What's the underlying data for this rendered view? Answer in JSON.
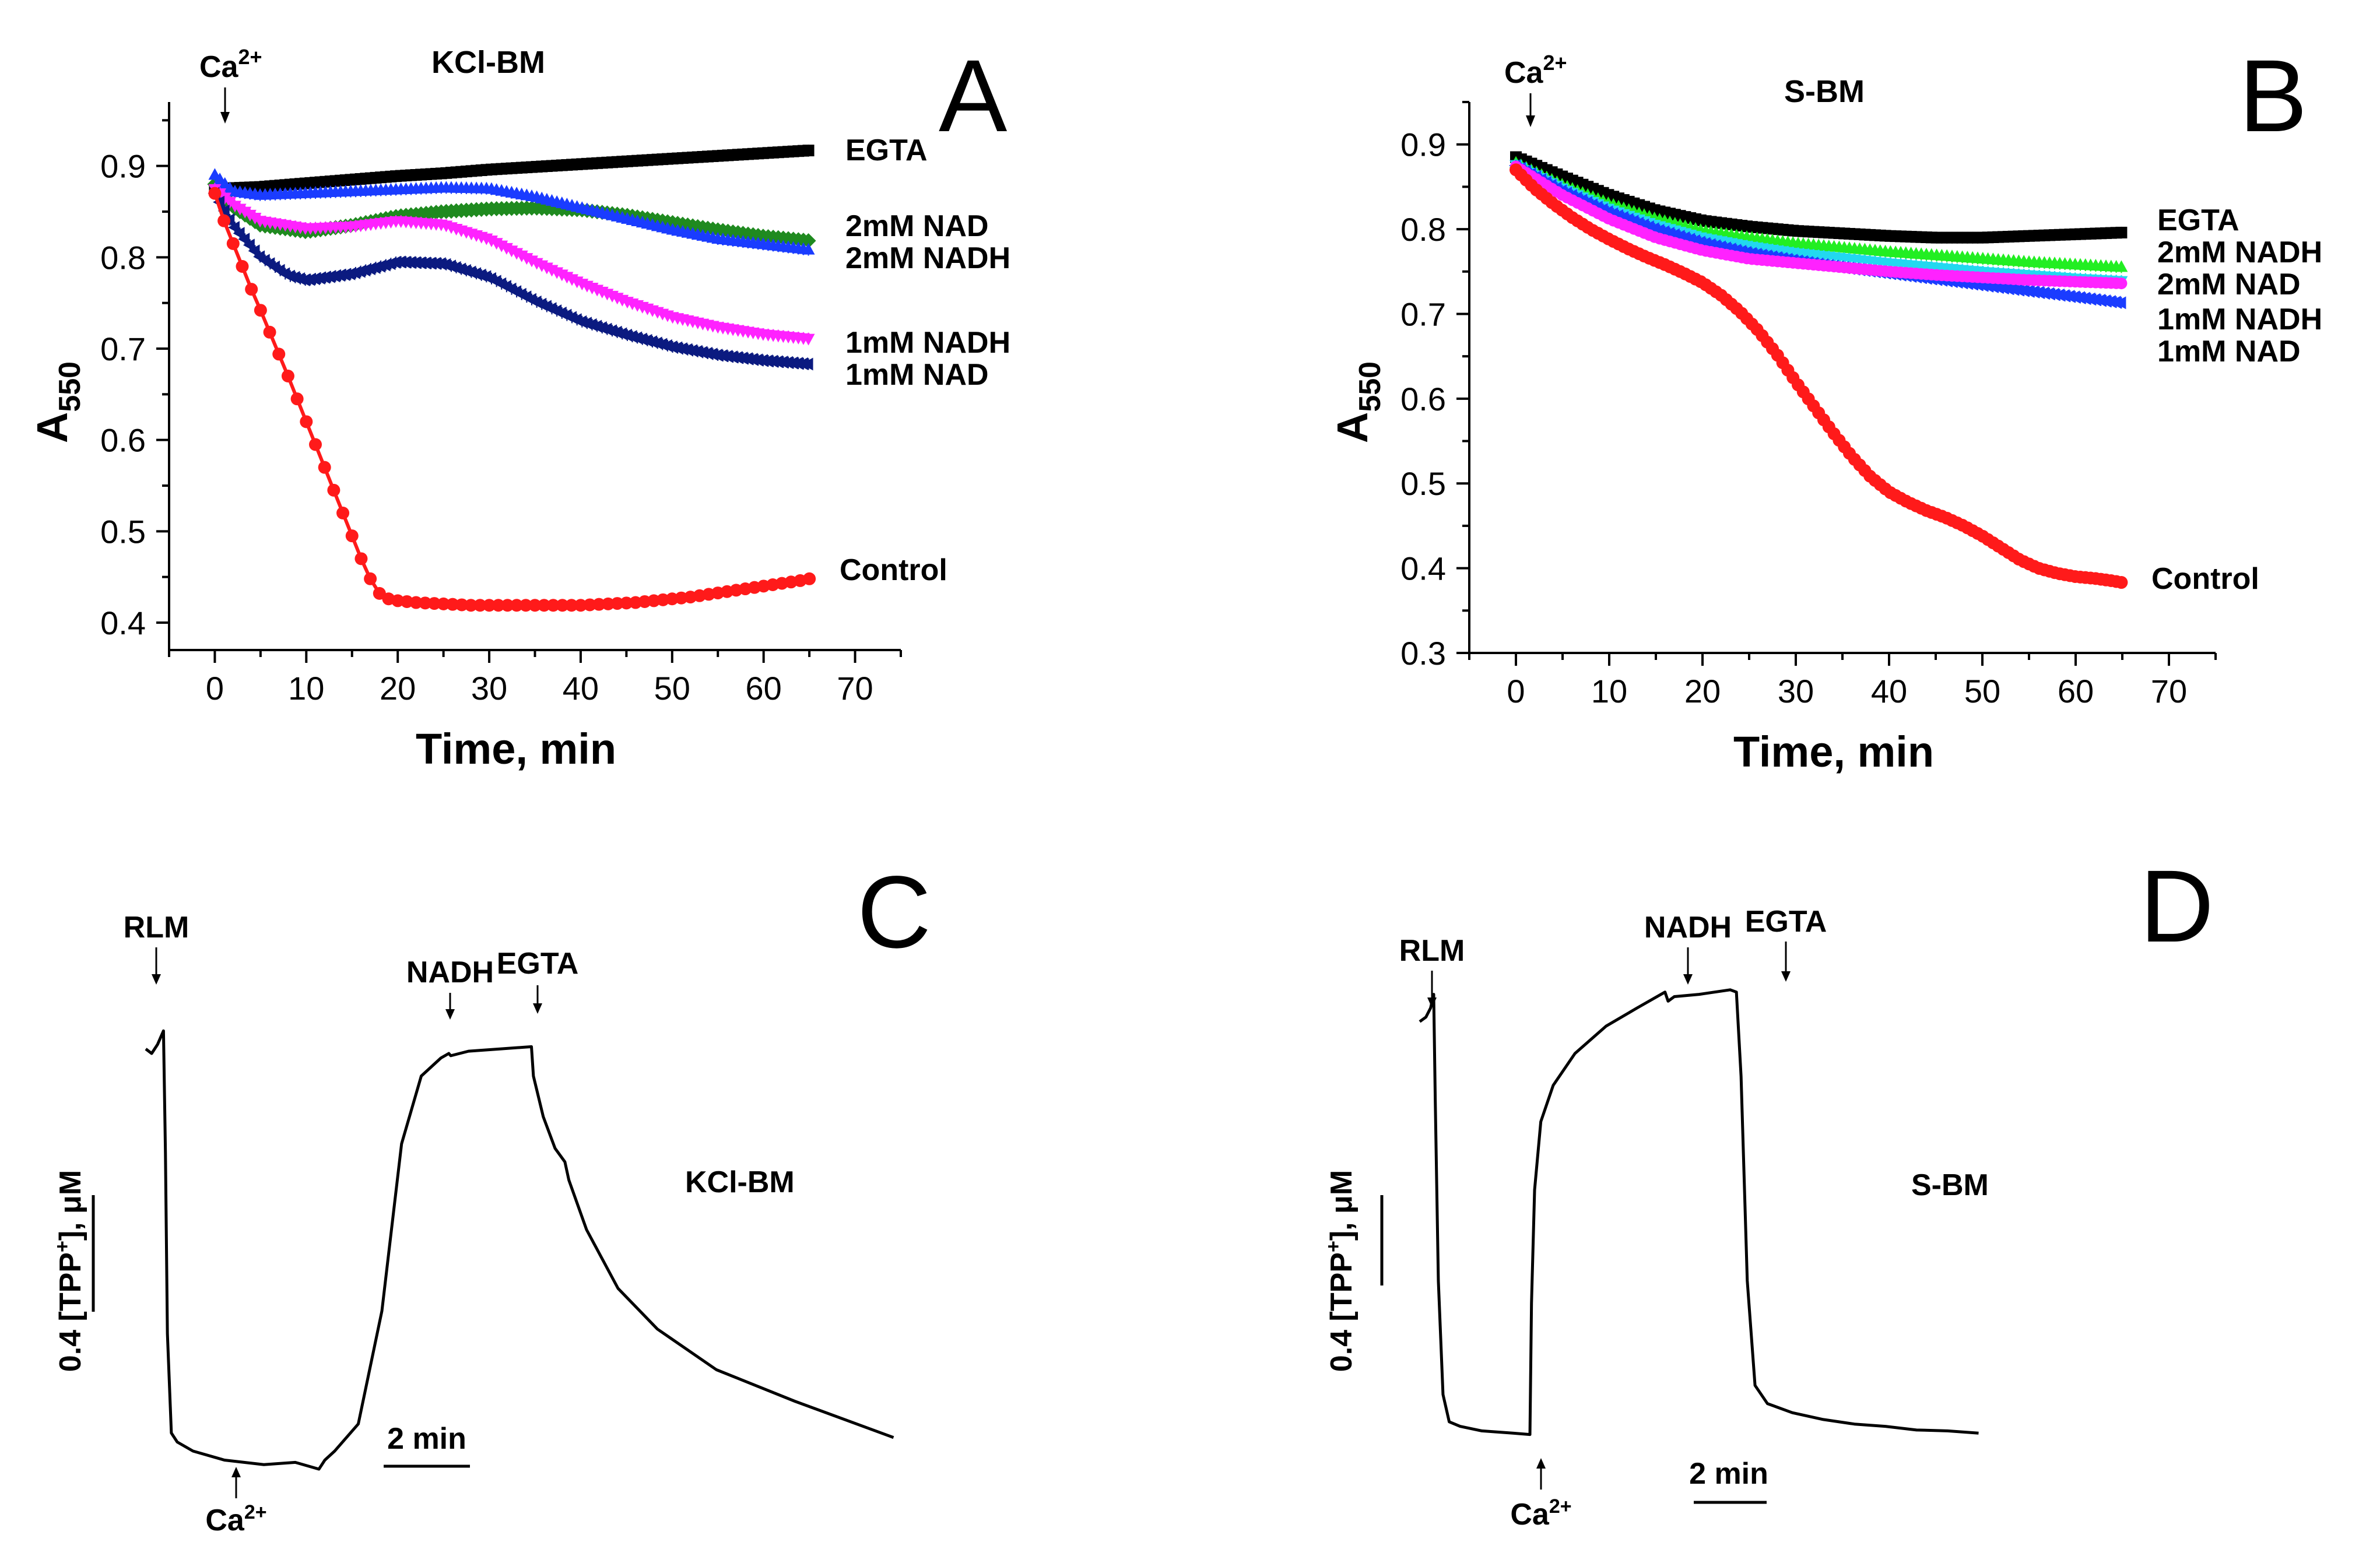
{
  "chart_data": [
    {
      "panel": "A",
      "type": "line",
      "title": "KCl-BM",
      "xlabel": "Time, min",
      "ylabel": "A550",
      "ylabel_main": "A",
      "ylabel_sub": "550",
      "xlim": [
        -5,
        75
      ],
      "ylim": [
        0.37,
        0.97
      ],
      "xticks": [
        0,
        10,
        20,
        30,
        40,
        50,
        60,
        70
      ],
      "yticks": [
        0.4,
        0.5,
        0.6,
        0.7,
        0.8,
        0.9
      ],
      "annotation": "Ca2+",
      "annotation_main": "Ca",
      "annotation_sup": "2+",
      "annotation_x": 0.5,
      "series": [
        {
          "name": "EGTA",
          "label": "EGTA",
          "color": "#000000",
          "marker": "square",
          "x": [
            0,
            5,
            10,
            15,
            20,
            25,
            30,
            35,
            40,
            45,
            50,
            55,
            60,
            65
          ],
          "y": [
            0.875,
            0.877,
            0.881,
            0.885,
            0.889,
            0.892,
            0.896,
            0.899,
            0.902,
            0.905,
            0.908,
            0.911,
            0.914,
            0.917
          ]
        },
        {
          "name": "2mM NAD",
          "label": "2mM NAD",
          "color": "#1f8a1f",
          "marker": "diamond",
          "x": [
            0,
            2,
            5,
            10,
            15,
            20,
            25,
            30,
            35,
            40,
            45,
            50,
            55,
            60,
            65
          ],
          "y": [
            0.88,
            0.855,
            0.835,
            0.828,
            0.835,
            0.845,
            0.85,
            0.853,
            0.854,
            0.852,
            0.846,
            0.838,
            0.83,
            0.823,
            0.818
          ]
        },
        {
          "name": "2mM NADH",
          "label": "2mM NADH",
          "color": "#1a3cff",
          "marker": "triangle",
          "x": [
            0,
            2,
            5,
            10,
            15,
            20,
            25,
            30,
            35,
            40,
            45,
            50,
            55,
            60,
            65
          ],
          "y": [
            0.89,
            0.872,
            0.868,
            0.87,
            0.872,
            0.874,
            0.876,
            0.875,
            0.866,
            0.854,
            0.842,
            0.83,
            0.82,
            0.814,
            0.808
          ]
        },
        {
          "name": "1mM NADH",
          "label": "1mM NADH",
          "color": "#ff22ff",
          "marker": "triangle-down",
          "x": [
            0,
            2,
            5,
            10,
            15,
            20,
            25,
            30,
            35,
            40,
            45,
            50,
            55,
            60,
            65
          ],
          "y": [
            0.875,
            0.858,
            0.84,
            0.832,
            0.834,
            0.84,
            0.836,
            0.82,
            0.795,
            0.772,
            0.752,
            0.735,
            0.724,
            0.716,
            0.711
          ]
        },
        {
          "name": "1mM NAD",
          "label": "1mM NAD",
          "color": "#0b1a80",
          "marker": "triangle-left",
          "x": [
            0,
            2,
            5,
            8,
            10,
            15,
            20,
            25,
            30,
            35,
            40,
            45,
            50,
            55,
            60,
            65
          ],
          "y": [
            0.87,
            0.835,
            0.8,
            0.78,
            0.775,
            0.782,
            0.795,
            0.793,
            0.778,
            0.752,
            0.73,
            0.715,
            0.702,
            0.693,
            0.687,
            0.683
          ]
        },
        {
          "name": "Control",
          "label": "Control",
          "color": "#ff1a1a",
          "marker": "circle",
          "x": [
            0,
            1,
            2,
            3,
            4,
            5,
            6,
            7,
            8,
            9,
            10,
            11,
            12,
            13,
            14,
            15,
            16,
            17,
            18,
            19,
            20,
            22,
            24,
            26,
            28,
            30,
            32,
            34,
            36,
            38,
            40,
            42,
            44,
            46,
            48,
            50,
            52,
            54,
            56,
            58,
            60,
            62,
            64,
            65
          ],
          "y": [
            0.87,
            0.84,
            0.815,
            0.79,
            0.765,
            0.742,
            0.718,
            0.694,
            0.67,
            0.645,
            0.62,
            0.595,
            0.57,
            0.545,
            0.52,
            0.495,
            0.47,
            0.448,
            0.432,
            0.426,
            0.424,
            0.422,
            0.421,
            0.42,
            0.419,
            0.419,
            0.419,
            0.419,
            0.419,
            0.419,
            0.419,
            0.42,
            0.421,
            0.422,
            0.424,
            0.426,
            0.428,
            0.431,
            0.434,
            0.437,
            0.44,
            0.443,
            0.446,
            0.448
          ]
        }
      ]
    },
    {
      "panel": "B",
      "type": "line",
      "title": "S-BM",
      "xlabel": "Time, min",
      "ylabel": "A550",
      "ylabel_main": "A",
      "ylabel_sub": "550",
      "xlim": [
        -5,
        75
      ],
      "ylim": [
        0.3,
        0.95
      ],
      "xticks": [
        0,
        10,
        20,
        30,
        40,
        50,
        60,
        70
      ],
      "yticks": [
        0.3,
        0.4,
        0.5,
        0.6,
        0.7,
        0.8,
        0.9
      ],
      "annotation": "Ca2+",
      "annotation_main": "Ca",
      "annotation_sup": "2+",
      "annotation_x": 1.5,
      "series": [
        {
          "name": "EGTA",
          "label": "EGTA",
          "color": "#000000",
          "marker": "square",
          "x": [
            0,
            5,
            10,
            15,
            20,
            25,
            30,
            35,
            40,
            45,
            50,
            55,
            60,
            65
          ],
          "y": [
            0.885,
            0.862,
            0.84,
            0.822,
            0.81,
            0.803,
            0.798,
            0.795,
            0.792,
            0.79,
            0.79,
            0.792,
            0.794,
            0.796
          ]
        },
        {
          "name": "2mM NADH",
          "label": "2mM NADH",
          "color": "#22ee22",
          "marker": "triangle",
          "x": [
            0,
            5,
            10,
            15,
            20,
            25,
            30,
            35,
            40,
            45,
            50,
            55,
            60,
            65
          ],
          "y": [
            0.878,
            0.852,
            0.83,
            0.812,
            0.798,
            0.79,
            0.783,
            0.778,
            0.773,
            0.769,
            0.765,
            0.761,
            0.758,
            0.755
          ]
        },
        {
          "name": "2mM NAD",
          "label": "2mM NAD",
          "color": "#22d8f0",
          "marker": "triangle-down",
          "x": [
            0,
            5,
            10,
            15,
            20,
            25,
            30,
            35,
            40,
            45,
            50,
            55,
            60,
            65
          ],
          "y": [
            0.876,
            0.848,
            0.824,
            0.805,
            0.79,
            0.78,
            0.772,
            0.766,
            0.76,
            0.755,
            0.75,
            0.746,
            0.742,
            0.739
          ]
        },
        {
          "name": "1mM NADH",
          "label": "1mM NADH",
          "color": "#1a3cff",
          "marker": "triangle-left",
          "x": [
            0,
            5,
            10,
            15,
            20,
            25,
            30,
            35,
            40,
            45,
            50,
            55,
            60,
            65
          ],
          "y": [
            0.875,
            0.845,
            0.82,
            0.8,
            0.784,
            0.772,
            0.763,
            0.755,
            0.748,
            0.741,
            0.734,
            0.727,
            0.72,
            0.713
          ]
        },
        {
          "name": "1mM NAD",
          "label": "1mM NAD",
          "color": "#ff22ff",
          "marker": "circle",
          "x": [
            0,
            5,
            10,
            15,
            20,
            25,
            30,
            35,
            40,
            45,
            50,
            55,
            60,
            65
          ],
          "y": [
            0.874,
            0.84,
            0.812,
            0.79,
            0.775,
            0.765,
            0.76,
            0.755,
            0.75,
            0.746,
            0.743,
            0.74,
            0.738,
            0.736
          ]
        },
        {
          "name": "Control",
          "label": "Control",
          "color": "#ff1a1a",
          "marker": "circle",
          "x": [
            0,
            2,
            4,
            6,
            8,
            10,
            12,
            14,
            16,
            18,
            20,
            22,
            24,
            26,
            28,
            30,
            32,
            34,
            36,
            38,
            40,
            42,
            44,
            46,
            48,
            50,
            52,
            54,
            56,
            58,
            60,
            62,
            64,
            65
          ],
          "y": [
            0.87,
            0.848,
            0.83,
            0.814,
            0.8,
            0.788,
            0.777,
            0.767,
            0.758,
            0.748,
            0.737,
            0.722,
            0.703,
            0.68,
            0.652,
            0.62,
            0.59,
            0.56,
            0.532,
            0.508,
            0.49,
            0.478,
            0.468,
            0.46,
            0.45,
            0.438,
            0.424,
            0.41,
            0.4,
            0.394,
            0.39,
            0.388,
            0.385,
            0.383
          ]
        }
      ]
    },
    {
      "panel": "C",
      "type": "line",
      "title": "KCl-BM",
      "ylabel": "0.4 [TPP+], μM",
      "scalebar_y": "0.4 [TPP+], μM",
      "scalebar_y_pre": "0.4 [TPP",
      "scalebar_y_sup": "+",
      "scalebar_y_post": "], μM",
      "scalebar_x": "2 min",
      "xlim": [
        0,
        20
      ],
      "ylim": [
        0,
        1
      ],
      "annotations": [
        {
          "label": "RLM",
          "x": 0.6
        },
        {
          "label": "Ca2+",
          "main": "Ca",
          "sup": "2+",
          "x": 4.4,
          "below": true
        },
        {
          "label": "NADH",
          "x": 7.7
        },
        {
          "label": "EGTA",
          "x": 9.8
        }
      ],
      "series": [
        {
          "name": "[TPP+] trace",
          "x": [
            0,
            0.15,
            0.3,
            0.4,
            0.45,
            0.5,
            0.55,
            0.65,
            0.8,
            1.2,
            2.0,
            3.0,
            3.8,
            4.2,
            4.4,
            4.55,
            4.8,
            5.4,
            6.0,
            6.5,
            7.0,
            7.5,
            7.7,
            7.75,
            8.2,
            9.0,
            9.8,
            9.85,
            10.1,
            10.4,
            10.65,
            10.75,
            11.2,
            12.0,
            13.0,
            14.5,
            16.5,
            19.0
          ],
          "y": [
            0.93,
            0.92,
            0.94,
            0.96,
            0.97,
            0.7,
            0.3,
            0.08,
            0.06,
            0.04,
            0.02,
            0.01,
            0.015,
            0.005,
            0.0,
            0.02,
            0.04,
            0.1,
            0.35,
            0.72,
            0.87,
            0.91,
            0.92,
            0.915,
            0.925,
            0.93,
            0.935,
            0.87,
            0.78,
            0.71,
            0.68,
            0.64,
            0.53,
            0.4,
            0.31,
            0.22,
            0.15,
            0.07
          ]
        }
      ]
    },
    {
      "panel": "D",
      "type": "line",
      "title": "S-BM",
      "ylabel": "0.4 [TPP+], μM",
      "scalebar_y": "0.4 [TPP+], μM",
      "scalebar_y_pre": "0.4 [TPP",
      "scalebar_y_sup": "+",
      "scalebar_y_post": "], μM",
      "scalebar_x": "2 min",
      "xlim": [
        0,
        20
      ],
      "ylim": [
        0,
        1
      ],
      "annotations": [
        {
          "label": "RLM",
          "x": 0.6
        },
        {
          "label": "Ca2+",
          "main": "Ca",
          "sup": "2+",
          "x": 3.6,
          "below": true
        },
        {
          "label": "NADH",
          "x": 8.0
        },
        {
          "label": "EGTA",
          "x": 10.2
        }
      ],
      "series": [
        {
          "name": "[TPP+] trace",
          "x": [
            0,
            0.2,
            0.35,
            0.45,
            0.5,
            0.6,
            0.75,
            0.95,
            1.3,
            2.0,
            3.0,
            3.55,
            3.6,
            3.7,
            3.9,
            4.3,
            5.0,
            6.0,
            7.0,
            7.9,
            8.0,
            8.2,
            9.0,
            10.0,
            10.2,
            10.35,
            10.55,
            10.8,
            11.2,
            12.0,
            13.0,
            14.0,
            15.0,
            16.0,
            17.0,
            18.0
          ],
          "y": [
            0.92,
            0.93,
            0.95,
            0.98,
            0.75,
            0.35,
            0.1,
            0.04,
            0.03,
            0.02,
            0.015,
            0.012,
            0.3,
            0.55,
            0.7,
            0.78,
            0.85,
            0.91,
            0.95,
            0.985,
            0.965,
            0.975,
            0.98,
            0.99,
            0.985,
            0.8,
            0.35,
            0.12,
            0.08,
            0.06,
            0.045,
            0.035,
            0.03,
            0.022,
            0.02,
            0.015
          ]
        }
      ]
    }
  ]
}
